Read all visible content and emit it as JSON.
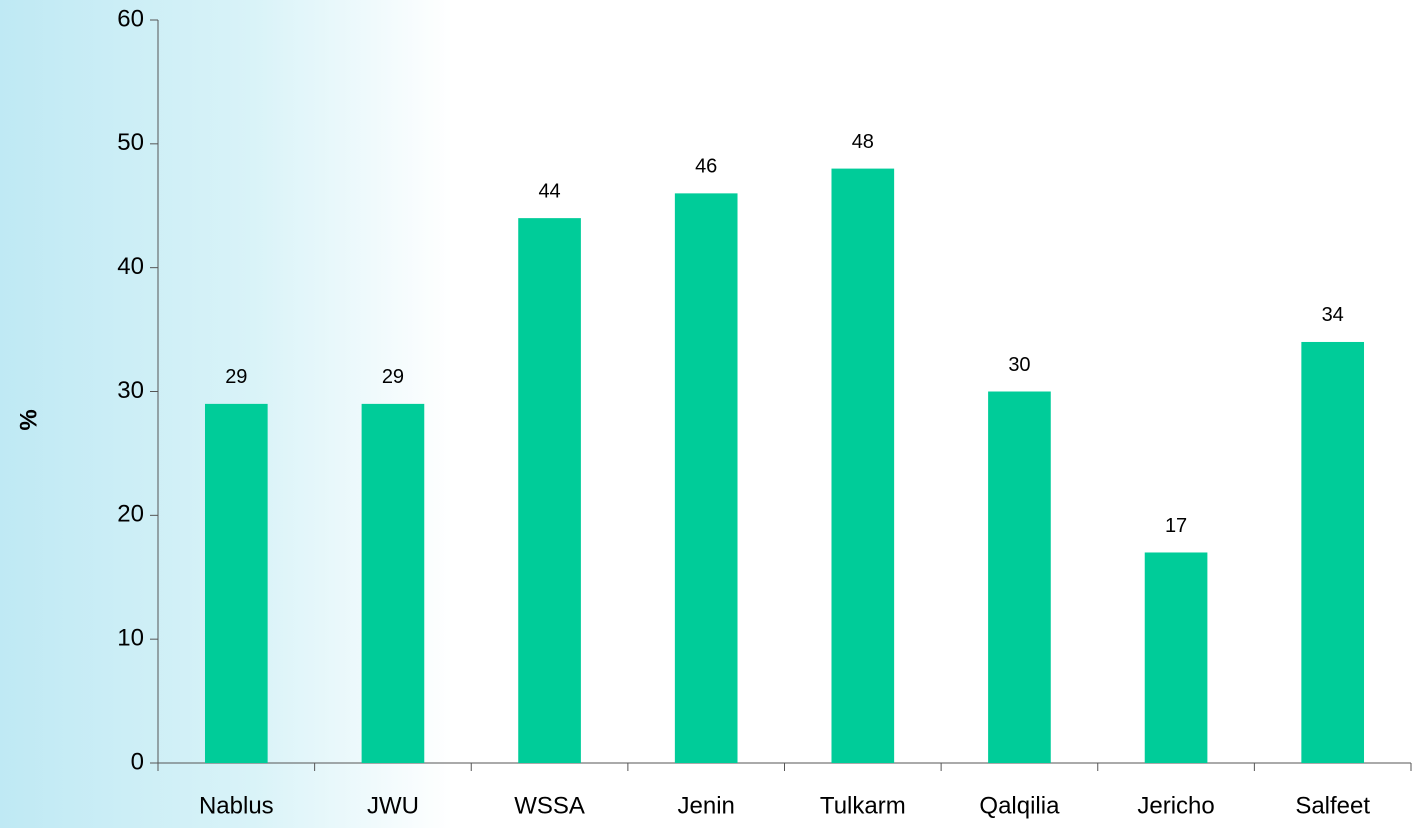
{
  "chart_data": {
    "type": "bar",
    "y_label": "%",
    "categories": [
      "Nablus",
      "JWU",
      "WSSA",
      "Jenin",
      "Tulkarm",
      "Qalqilia",
      "Jericho",
      "Salfeet"
    ],
    "values": [
      29,
      29,
      44,
      46,
      48,
      30,
      17,
      34
    ],
    "color": "#00cc99",
    "ylim": [
      0,
      60
    ],
    "yticks": [
      0,
      10,
      20,
      30,
      40,
      50,
      60
    ],
    "grid": false
  }
}
